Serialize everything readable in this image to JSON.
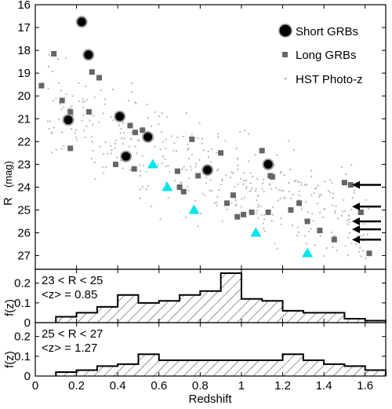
{
  "chart_data": [
    {
      "type": "scatter",
      "xlabel": "",
      "ylabel": "R",
      "ylabel_unit": "(mag)",
      "xlim": [
        0,
        1.7
      ],
      "ylim": [
        27.6,
        16
      ],
      "y_inverted": true,
      "y_ticks": [
        16,
        17,
        18,
        19,
        20,
        21,
        22,
        23,
        24,
        25,
        26,
        27
      ],
      "legend_position": "top-right",
      "series": [
        {
          "name": "Short GRBs",
          "marker": "circle",
          "color": "#000000",
          "points": [
            [
              0.225,
              16.75
            ],
            [
              0.258,
              18.2
            ],
            [
              0.16,
              21.05
            ],
            [
              0.41,
              20.9
            ],
            [
              0.546,
              21.8
            ],
            [
              0.44,
              22.65
            ],
            [
              0.835,
              23.25
            ],
            [
              1.13,
              23.0
            ]
          ]
        },
        {
          "name": "Long GRBs",
          "marker": "square",
          "color": "#666666",
          "points": [
            [
              0.03,
              19.55
            ],
            [
              0.09,
              18.15
            ],
            [
              0.13,
              20.2
            ],
            [
              0.17,
              22.3
            ],
            [
              0.17,
              20.7
            ],
            [
              0.26,
              20.7
            ],
            [
              0.275,
              18.95
            ],
            [
              0.31,
              19.2
            ],
            [
              0.39,
              23.0
            ],
            [
              0.46,
              21.3
            ],
            [
              0.48,
              23.2
            ],
            [
              0.485,
              21.6
            ],
            [
              0.52,
              21.5
            ],
            [
              0.69,
              23.3
            ],
            [
              0.7,
              24.0
            ],
            [
              0.72,
              24.2
            ],
            [
              0.76,
              21.9
            ],
            [
              0.79,
              23.5
            ],
            [
              0.9,
              22.5
            ],
            [
              0.93,
              24.7
            ],
            [
              0.96,
              24.35
            ],
            [
              0.98,
              25.3
            ],
            [
              1.01,
              25.2
            ],
            [
              1.05,
              25.1
            ],
            [
              1.1,
              22.4
            ],
            [
              1.13,
              25.1
            ],
            [
              1.14,
              23.5
            ],
            [
              1.15,
              23.55
            ],
            [
              1.24,
              25.0
            ],
            [
              1.28,
              24.7
            ],
            [
              1.32,
              25.5
            ],
            [
              1.38,
              25.9
            ],
            [
              1.45,
              26.3
            ],
            [
              1.5,
              23.8
            ],
            [
              1.53,
              23.9
            ],
            [
              1.58,
              25.1
            ],
            [
              1.62,
              26.9
            ]
          ]
        },
        {
          "name": "HST Photo-z",
          "marker": "dot",
          "color": "#b0b0b0"
        },
        {
          "name": "",
          "marker": "triangle",
          "color": "#00e5ee",
          "points": [
            [
              0.57,
              23.0
            ],
            [
              0.64,
              24.0
            ],
            [
              0.77,
              25.0
            ],
            [
              1.07,
              26.0
            ],
            [
              1.32,
              26.9
            ]
          ]
        }
      ],
      "arrows_at_right_R": [
        23.9,
        24.85,
        25.5,
        25.85,
        26.3
      ]
    },
    {
      "type": "bar",
      "style": "step-histogram",
      "annotation_line1": "23 < R < 25",
      "annotation_line2": "<z> = 0.85",
      "ylabel": "f(z)",
      "ylim": [
        0,
        0.27
      ],
      "y_ticks": [
        "0",
        "0.1",
        "0.2"
      ],
      "bin_edges": [
        0.1,
        0.2,
        0.3,
        0.4,
        0.5,
        0.6,
        0.7,
        0.8,
        0.9,
        1.0,
        1.1,
        1.2,
        1.3,
        1.4,
        1.5,
        1.6,
        1.7
      ],
      "values": [
        0.03,
        0.05,
        0.08,
        0.14,
        0.1,
        0.11,
        0.14,
        0.16,
        0.25,
        0.12,
        0.11,
        0.06,
        0.05,
        0.05,
        0.02,
        0.01
      ]
    },
    {
      "type": "bar",
      "style": "step-histogram",
      "annotation_line1": "25 < R < 27",
      "annotation_line2": "<z> = 1.27",
      "ylabel": "f(z)",
      "xlabel": "Redshift",
      "xlim": [
        0,
        1.7
      ],
      "ylim": [
        0,
        0.27
      ],
      "x_ticks": [
        "0",
        "0.2",
        "0.4",
        "0.6",
        "0.8",
        "1",
        "1.2",
        "1.4",
        "1.6"
      ],
      "y_ticks": [
        "0",
        "0.1",
        "0.2"
      ],
      "bin_edges": [
        0.1,
        0.2,
        0.3,
        0.4,
        0.5,
        0.6,
        0.7,
        0.8,
        0.9,
        1.0,
        1.1,
        1.2,
        1.3,
        1.4,
        1.5,
        1.6,
        1.7
      ],
      "values": [
        0.02,
        0.03,
        0.05,
        0.06,
        0.11,
        0.08,
        0.08,
        0.08,
        0.08,
        0.08,
        0.08,
        0.11,
        0.08,
        0.06,
        0.05,
        0.03
      ]
    }
  ]
}
